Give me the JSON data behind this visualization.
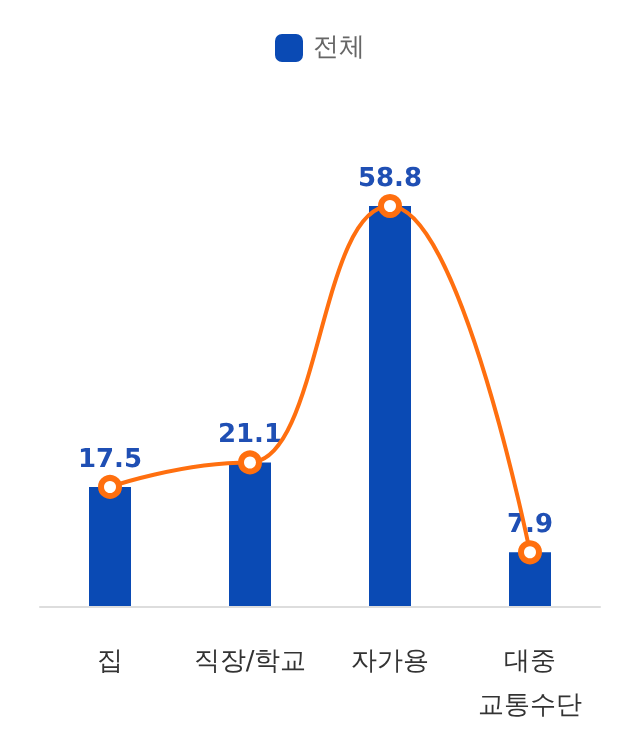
{
  "chart_data": {
    "type": "bar",
    "categories": [
      "집",
      "직장/학교",
      "자가용",
      "대중\n교통수단"
    ],
    "series": [
      {
        "name": "전체",
        "color": "#0a4ab4",
        "values": [
          17.5,
          21.1,
          58.8,
          7.9
        ],
        "value_labels": [
          "17.5",
          "21.1",
          "58.8",
          "7.9"
        ]
      },
      {
        "type": "line",
        "color": "#ff6f0f",
        "values": [
          17.5,
          21.1,
          58.8,
          7.9
        ],
        "marker": "circle"
      }
    ],
    "legend": "top",
    "grid": false
  }
}
